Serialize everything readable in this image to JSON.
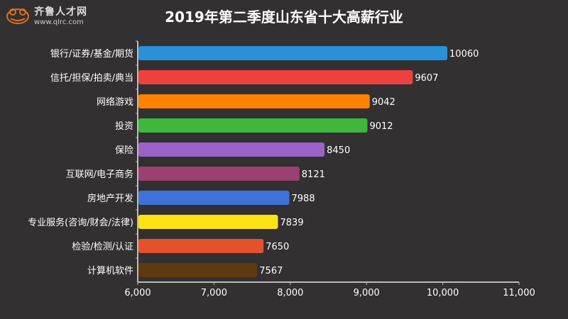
{
  "logo": {
    "name": "齐鲁人才网",
    "url": "www.qlrc.com"
  },
  "chart_data": {
    "type": "bar",
    "orientation": "horizontal",
    "title": "2019年第二季度山东省十大高薪行业",
    "categories": [
      "银行/证券/基金/期货",
      "信托/担保/拍卖/典当",
      "网络游戏",
      "投资",
      "保险",
      "互联网/电子商务",
      "房地产开发",
      "专业服务(咨询/财会/法律)",
      "检验/检测/认证",
      "计算机软件"
    ],
    "values": [
      10060,
      9607,
      9042,
      9012,
      8450,
      8121,
      7988,
      7839,
      7650,
      7567
    ],
    "colors": [
      "#2a91d9",
      "#ef4040",
      "#ff8200",
      "#3db83d",
      "#9b62c8",
      "#9c416f",
      "#3e72d8",
      "#ffe214",
      "#e5512a",
      "#5f3a10"
    ],
    "xlim": [
      6000,
      11000
    ],
    "xticks": [
      "6,000",
      "7,000",
      "8,000",
      "9,000",
      "10,000",
      "11,000"
    ],
    "grid": false,
    "legend": "none"
  }
}
